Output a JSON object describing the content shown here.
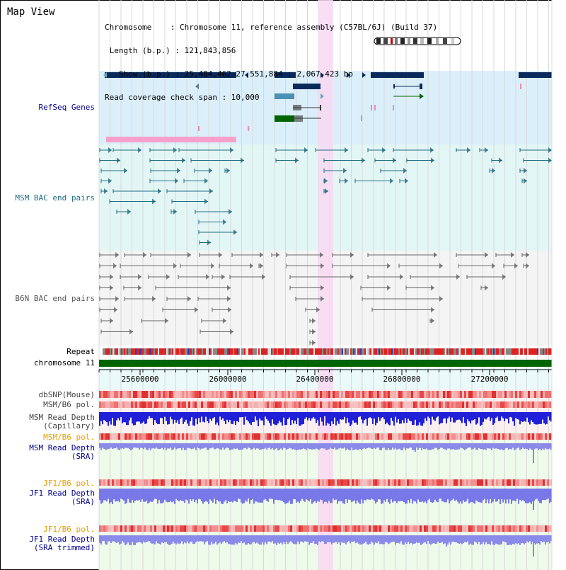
{
  "header": {
    "title": "Map View",
    "info_lines": [
      "Chromosome    : Chromosome 11, reference assembly (C57BL/6J) (Build 37)",
      " Length (b.p.) : 121,843,856",
      "   Show (b.p.) : 25,484,462-27,551,884 : 2,067,423 bp",
      "Read coverage check span : 10,000"
    ]
  },
  "tracks": {
    "refseq": {
      "label": "RefSeq Genes",
      "color": "#00008b"
    },
    "msm_bac": {
      "label": "MSM BAC end pairs",
      "color": "#1f6c80"
    },
    "b6n_bac": {
      "label": "B6N BAC end pairs",
      "color": "#555555"
    },
    "repeat": {
      "label": "Repeat"
    },
    "chromosome": {
      "label": "chromosome 11"
    },
    "dbsnp": {
      "label": "dbSNP(Mouse)"
    },
    "msm_b6_pol_1": {
      "label": "MSM/B6 pol."
    },
    "msm_capillary": {
      "label": "MSM Read Depth\n(Capillary)"
    },
    "msm_b6_pol_2": {
      "label": "MSM/B6 pol.",
      "color": "#e8a000"
    },
    "msm_sra": {
      "label": "MSM Read Depth\n(SRA)",
      "color": "#00008b"
    },
    "jf1_b6_pol_1": {
      "label": "JF1/B6 pol.",
      "color": "#e8a000"
    },
    "jf1_sra": {
      "label": "JF1 Read Depth\n(SRA)",
      "color": "#00008b"
    },
    "jf1_b6_pol_2": {
      "label": "JF1/B6 pol.",
      "color": "#e8a000"
    },
    "jf1_sra_trimmed": {
      "label": "JF1 Read Depth\n(SRA trimmed)",
      "color": "#00008b"
    }
  },
  "axis": {
    "ticks": [
      "25600000",
      "26000000",
      "26400000",
      "26800000",
      "27200000"
    ]
  },
  "colors": {
    "refseq_bg": "#dbeffa",
    "msm_bg": "#e3f6f6",
    "b6n_bg": "#f4f4f4",
    "highlight": "#f8d8f2",
    "chromosome_bar": "#006400"
  }
}
